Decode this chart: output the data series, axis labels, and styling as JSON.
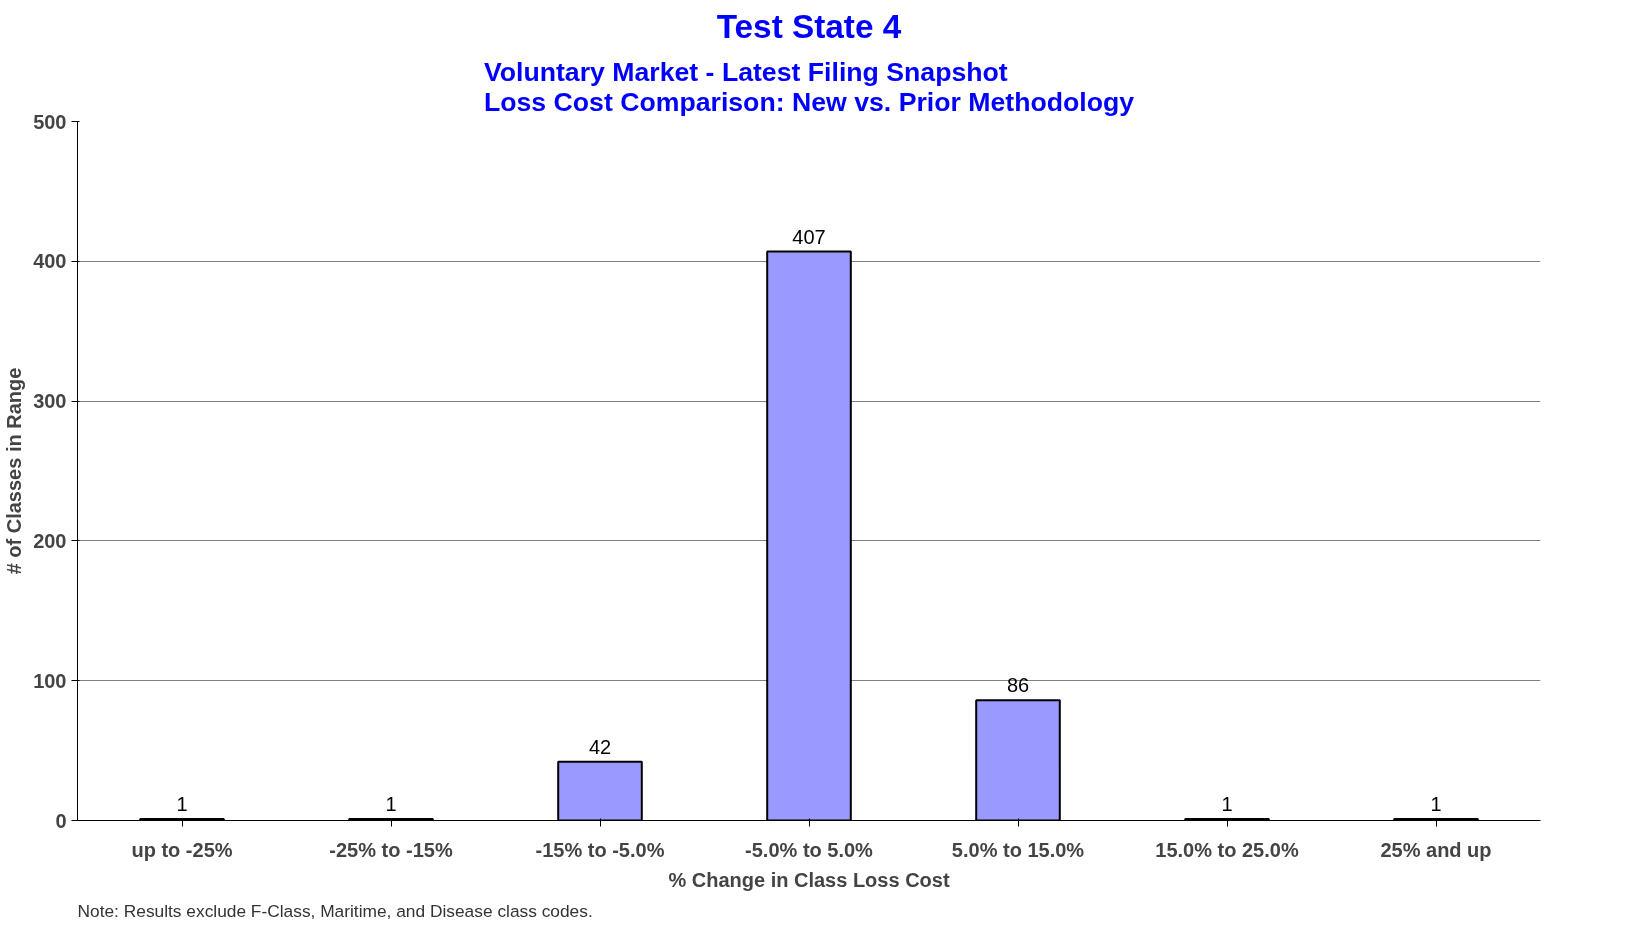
{
  "chart_data": {
    "type": "bar",
    "title": "Test State 4",
    "subtitle": "Voluntary Market - Latest Filing Snapshot\nLoss Cost Comparison: New vs. Prior Methodology",
    "xlabel": "% Change in Class Loss Cost",
    "ylabel": "# of Classes in Range",
    "categories": [
      "up to -25%",
      "-25% to -15%",
      "-15% to -5.0%",
      "-5.0% to 5.0%",
      "5.0% to 15.0%",
      "15.0% to 25.0%",
      "25% and up"
    ],
    "values": [
      1,
      1,
      42,
      407,
      86,
      1,
      1
    ],
    "color": "#9999ff",
    "ylim": [
      0,
      500
    ],
    "yticks": [
      0,
      100,
      200,
      300,
      400,
      500
    ],
    "grid": "y",
    "data_labels": true,
    "annotations": [
      "Note: Results exclude F-Class, Maritime, and Disease  class codes."
    ]
  }
}
